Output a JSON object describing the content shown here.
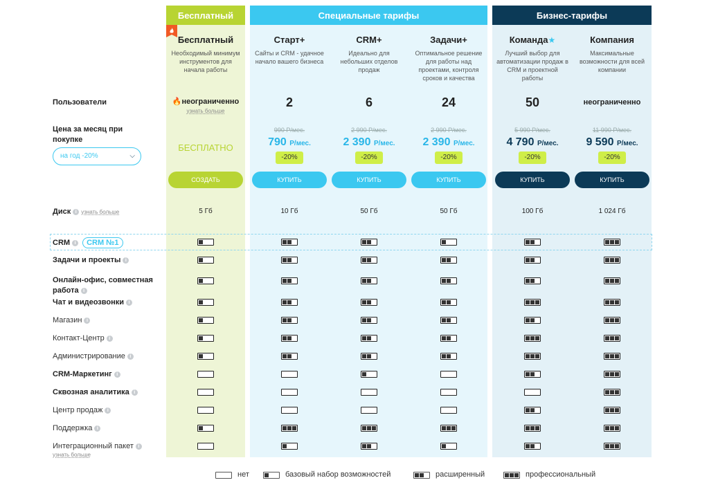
{
  "groups": {
    "free": "Бесплатный",
    "special": "Специальные тарифы",
    "business": "Бизнес-тарифы"
  },
  "plans": [
    {
      "name": "Бесплатный",
      "star": "",
      "desc": "Необходимый минимум инструментов для начала работы"
    },
    {
      "name": "Старт+",
      "star": "",
      "desc": "Сайты и CRM - удачное начало вашего бизнеса"
    },
    {
      "name": "CRM+",
      "star": "",
      "desc": "Идеально для небольших отделов продаж"
    },
    {
      "name": "Задачи+",
      "star": "",
      "desc": "Оптимальное решение для работы над проектами, контроля сроков и качества"
    },
    {
      "name": "Команда",
      "star": "★",
      "desc": "Лучший выбор для автоматизации продаж в CRM и проектной работы"
    },
    {
      "name": "Компания",
      "star": "",
      "desc": "Максимальные возможности для всей компании"
    }
  ],
  "users": {
    "label": "Пользователи",
    "free_value": "неограниченно",
    "free_more": "узнать больше",
    "values": [
      "2",
      "6",
      "24",
      "50",
      "неограниченно"
    ]
  },
  "price": {
    "label": "Цена за месяц при покупке",
    "period_select": "на год  -20%",
    "free_price": "БЕСПЛАТНО",
    "old": [
      "990 Р/мес.",
      "2 990 Р/мес.",
      "2 990 Р/мес.",
      "5 990 Р/мес.",
      "11 990 Р/мес."
    ],
    "new": [
      "790",
      "2 390",
      "2 390",
      "4 790",
      "9 590"
    ],
    "unit": "Р/мес.",
    "discount": "-20%"
  },
  "buttons": {
    "create": "СОЗДАТЬ",
    "buy": "КУПИТЬ"
  },
  "disk": {
    "label": "Диск",
    "more": "узнать больше",
    "values": [
      "5 Гб",
      "10 Гб",
      "50 Гб",
      "50 Гб",
      "100 Гб",
      "1 024 Гб"
    ]
  },
  "features": [
    {
      "label": "CRM",
      "bold": true,
      "badge": "CRM №1",
      "levels": [
        1,
        2,
        2,
        1,
        2,
        3
      ]
    },
    {
      "label": "Задачи и проекты",
      "bold": true,
      "levels": [
        1,
        2,
        2,
        2,
        2,
        3
      ]
    },
    {
      "label": "Онлайн-офис, совместная работа",
      "bold": true,
      "levels": [
        1,
        2,
        2,
        2,
        2,
        3
      ]
    },
    {
      "label": "Чат и видеозвонки",
      "bold": true,
      "levels": [
        1,
        2,
        2,
        2,
        3,
        3
      ]
    },
    {
      "label": "Магазин",
      "bold": false,
      "levels": [
        1,
        2,
        2,
        2,
        2,
        3
      ]
    },
    {
      "label": "Контакт-Центр",
      "bold": false,
      "levels": [
        1,
        2,
        2,
        2,
        3,
        3
      ]
    },
    {
      "label": "Администрирование",
      "bold": false,
      "levels": [
        1,
        2,
        2,
        2,
        3,
        3
      ]
    },
    {
      "label": "CRM-Маркетинг",
      "bold": true,
      "levels": [
        0,
        0,
        1,
        0,
        2,
        3
      ]
    },
    {
      "label": "Сквозная аналитика",
      "bold": true,
      "levels": [
        0,
        0,
        0,
        0,
        0,
        3
      ]
    },
    {
      "label": "Центр продаж",
      "bold": false,
      "levels": [
        0,
        0,
        0,
        0,
        2,
        3
      ]
    },
    {
      "label": "Поддержка",
      "bold": false,
      "levels": [
        1,
        3,
        3,
        3,
        3,
        3
      ]
    },
    {
      "label": "Интеграционный пакет",
      "bold": false,
      "more": "узнать больше",
      "levels": [
        0,
        1,
        2,
        1,
        2,
        3
      ]
    }
  ],
  "legend": {
    "none": "нет",
    "basic": "базовый набор возможностей",
    "extended": "расширенный",
    "pro": "профессиональный"
  },
  "colors": {
    "free": "#b8d433",
    "special": "#3bc8f0",
    "business": "#0c3a57",
    "discount": "#cfee48"
  }
}
